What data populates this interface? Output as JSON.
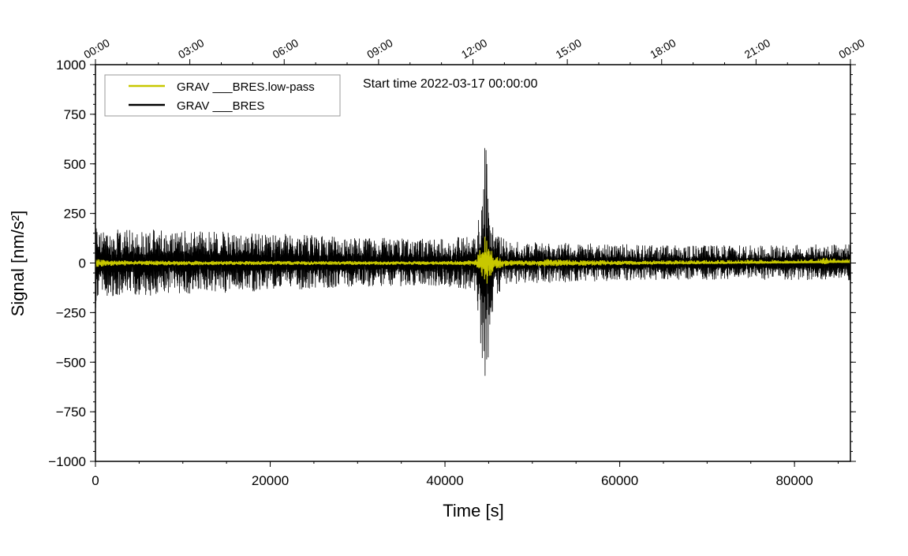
{
  "chart_data": {
    "type": "line",
    "title": "",
    "annotation": "Start time 2022-03-17 00:00:00",
    "xlabel": "Time [s]",
    "ylabel": "Signal [nm/s²]",
    "xlim": [
      0,
      86400
    ],
    "ylim": [
      -1000,
      1000
    ],
    "x_ticks": [
      "0",
      "20000",
      "40000",
      "60000",
      "80000"
    ],
    "x_tick_values": [
      0,
      20000,
      40000,
      60000,
      80000
    ],
    "y_ticks": [
      "−1000",
      "−750",
      "−500",
      "−250",
      "0",
      "250",
      "500",
      "750",
      "1000"
    ],
    "y_tick_values": [
      -1000,
      -750,
      -500,
      -250,
      0,
      250,
      500,
      750,
      1000
    ],
    "top_axis_ticks": [
      "00:00",
      "03:00",
      "06:00",
      "09:00",
      "12:00",
      "15:00",
      "18:00",
      "21:00",
      "00:00"
    ],
    "grid": false,
    "legend_position": "top-left",
    "series": [
      {
        "name": "GRAV ___BRES.low-pass",
        "color": "#c8c800",
        "envelope_x": [
          0,
          1000,
          5000,
          20000,
          40000,
          43500,
          44700,
          45500,
          47000,
          50000,
          51000,
          60000,
          80000,
          83000,
          83500,
          84000,
          86400
        ],
        "envelope_max": [
          25,
          15,
          12,
          10,
          10,
          15,
          170,
          40,
          15,
          12,
          20,
          12,
          18,
          20,
          30,
          22,
          22
        ],
        "envelope_min": [
          -25,
          -15,
          -12,
          -10,
          -10,
          -15,
          -120,
          -40,
          -15,
          -12,
          -18,
          -10,
          -2,
          0,
          -10,
          2,
          2
        ]
      },
      {
        "name": "GRAV ___BRES",
        "color": "#000000",
        "envelope_x": [
          0,
          500,
          2000,
          10000,
          20000,
          30000,
          40000,
          43500,
          44300,
          44700,
          45000,
          45600,
          47000,
          55000,
          65000,
          75000,
          86400
        ],
        "envelope_max": [
          230,
          160,
          170,
          170,
          150,
          130,
          120,
          150,
          370,
          740,
          300,
          170,
          110,
          100,
          90,
          90,
          95
        ],
        "envelope_min": [
          -230,
          -160,
          -170,
          -160,
          -140,
          -120,
          -115,
          -150,
          -500,
          -790,
          -450,
          -200,
          -110,
          -95,
          -85,
          -85,
          -90
        ]
      }
    ]
  }
}
